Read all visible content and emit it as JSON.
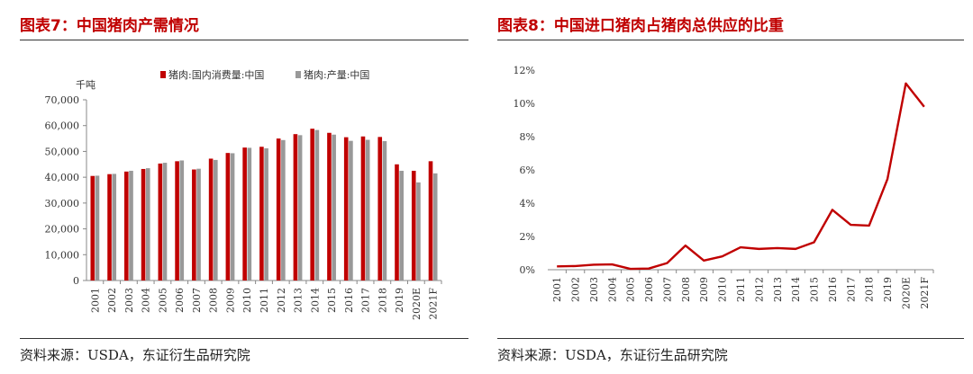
{
  "left": {
    "title": "图表7：中国猪肉产需情况",
    "source": "资料来源：USDA，东证衍生品研究院"
  },
  "right": {
    "title": "图表8：中国进口猪肉占猪肉总供应的比重",
    "source": "资料来源：USDA，东证衍生品研究院"
  },
  "chart_data": [
    {
      "type": "bar",
      "title": "",
      "ylabel": "千吨",
      "xlabel": "",
      "ylim": [
        0,
        70000
      ],
      "yticks": [
        0,
        10000,
        20000,
        30000,
        40000,
        50000,
        60000,
        70000
      ],
      "ytick_labels": [
        "0",
        "10,000",
        "20,000",
        "30,000",
        "40,000",
        "50,000",
        "60,000",
        "70,000"
      ],
      "legend_position": "top",
      "grid": false,
      "categories": [
        "2001",
        "2002",
        "2003",
        "2004",
        "2005",
        "2006",
        "2007",
        "2008",
        "2009",
        "2010",
        "2011",
        "2012",
        "2013",
        "2014",
        "2015",
        "2016",
        "2017",
        "2018",
        "2019",
        "2020E",
        "2021F"
      ],
      "series": [
        {
          "name": "猪肉:国内消费量:中国",
          "color": "#c00000",
          "values": [
            40500,
            41200,
            42200,
            43200,
            45300,
            46200,
            43000,
            47200,
            49400,
            51500,
            51800,
            55000,
            56700,
            58800,
            57200,
            55500,
            55800,
            55600,
            45000,
            42500,
            46200
          ]
        },
        {
          "name": "猪肉:产量:中国",
          "color": "#999999",
          "values": [
            40600,
            41300,
            42500,
            43500,
            45600,
            46500,
            43300,
            46700,
            49300,
            51400,
            51200,
            54400,
            56300,
            58300,
            56500,
            54100,
            54500,
            54000,
            42500,
            38000,
            41500
          ]
        }
      ]
    },
    {
      "type": "line",
      "title": "",
      "xlabel": "",
      "ylabel": "",
      "ylim": [
        0,
        12
      ],
      "yticks": [
        0,
        2,
        4,
        6,
        8,
        10,
        12
      ],
      "ytick_labels": [
        "0%",
        "2%",
        "4%",
        "6%",
        "8%",
        "10%",
        "12%"
      ],
      "grid": false,
      "categories": [
        "2001",
        "2002",
        "2003",
        "2004",
        "2005",
        "2006",
        "2007",
        "2008",
        "2009",
        "2010",
        "2011",
        "2012",
        "2013",
        "2014",
        "2015",
        "2016",
        "2017",
        "2018",
        "2019",
        "2020E",
        "2021F"
      ],
      "series": [
        {
          "color": "#c00000",
          "values": [
            0.2,
            0.22,
            0.3,
            0.32,
            0.05,
            0.07,
            0.4,
            1.45,
            0.55,
            0.8,
            1.35,
            1.25,
            1.3,
            1.25,
            1.65,
            3.6,
            2.7,
            2.65,
            5.45,
            11.2,
            9.8
          ]
        }
      ]
    }
  ]
}
